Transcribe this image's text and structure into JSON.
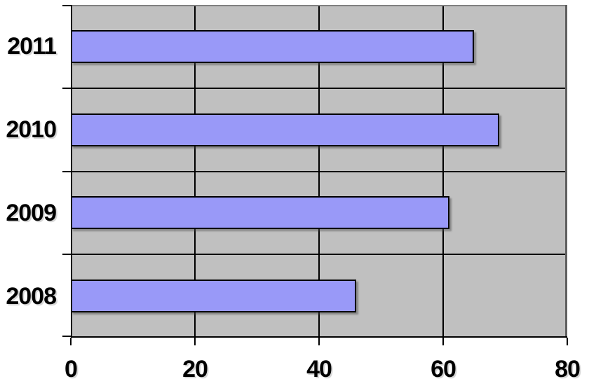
{
  "chart_data": {
    "type": "bar",
    "orientation": "horizontal",
    "title": "",
    "categories": [
      "2011",
      "2010",
      "2009",
      "2008"
    ],
    "values": [
      65,
      69,
      61,
      46
    ],
    "xlabel": "",
    "ylabel": "",
    "xlim": [
      0,
      80
    ],
    "xticks": [
      "0",
      "20",
      "40",
      "60",
      "80"
    ],
    "xtick_values": [
      0,
      20,
      40,
      60,
      80
    ],
    "grid": "major-vertical-and-category-separators",
    "legend": "none",
    "colors": {
      "bar_fill": "#9999F8",
      "bar_border": "#000000",
      "plot_background": "#C0C0C0",
      "gridline": "#000000",
      "axis": "#000000",
      "frame_top": "#808080",
      "frame_right": "#606060",
      "page_background": "#FFFFFF",
      "label_text": "#000000"
    }
  }
}
